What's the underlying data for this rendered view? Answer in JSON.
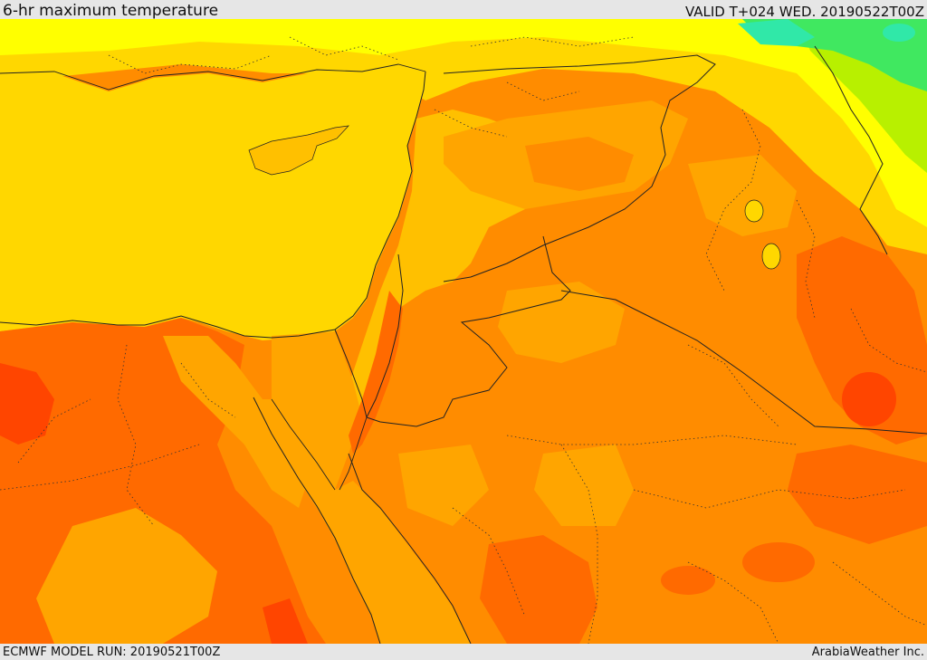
{
  "header": {
    "title": "6-hr maximum temperature",
    "valid": "VALID T+024 WED. 20190522T00Z"
  },
  "footer": {
    "model_run": "ECMWF MODEL RUN: 20190521T00Z",
    "credit": "ArabiaWeather Inc."
  },
  "colors": {
    "sea_yellow": "#ffd700",
    "light_yellow": "#ffff00",
    "amber": "#ffc000",
    "orange_light": "#ffa500",
    "orange": "#ff8c00",
    "orange_dark": "#ff6a00",
    "red_orange": "#ff4500",
    "lime": "#b8f000",
    "green": "#40e860",
    "cyan": "#30e8a8"
  }
}
